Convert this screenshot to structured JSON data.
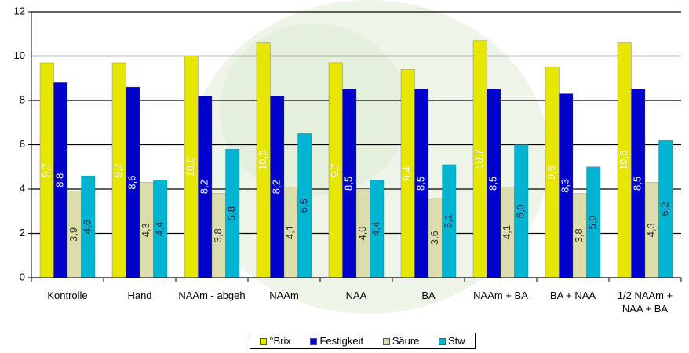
{
  "chart_data": {
    "type": "bar",
    "categories": [
      "Kontrolle",
      "Hand",
      "NAAm - abgeh",
      "NAAm",
      "NAA",
      "BA",
      "NAAm + BA",
      "BA + NAA",
      "1/2 NAAm + NAA + BA"
    ],
    "series": [
      {
        "name": "°Brix",
        "color": "#e6e600",
        "values": [
          9.7,
          9.7,
          10.0,
          10.6,
          9.7,
          9.4,
          10.7,
          9.5,
          10.6
        ],
        "value_labels": [
          "9,7",
          "9,7",
          "10,0",
          "10,6",
          "9,7",
          "9,4",
          "10,7",
          "9,5",
          "10,6"
        ]
      },
      {
        "name": "Festigkeit",
        "color": "#0000cc",
        "values": [
          8.8,
          8.6,
          8.2,
          8.2,
          8.5,
          8.5,
          8.5,
          8.3,
          8.5
        ],
        "value_labels": [
          "8,8",
          "8,6",
          "8,2",
          "8,2",
          "8,5",
          "8,5",
          "8,5",
          "8,3",
          "8,5"
        ]
      },
      {
        "name": "Säure",
        "color": "#dcdcac",
        "values": [
          3.9,
          4.3,
          3.8,
          4.1,
          4.0,
          3.6,
          4.1,
          3.8,
          4.3
        ],
        "value_labels": [
          "3,9",
          "4,3",
          "3,8",
          "4,1",
          "4,0",
          "3,6",
          "4,1",
          "3,8",
          "4,3"
        ]
      },
      {
        "name": "Stw",
        "color": "#00b4d2",
        "values": [
          4.6,
          4.4,
          5.8,
          6.5,
          4.4,
          5.1,
          6.0,
          5.0,
          6.2
        ],
        "value_labels": [
          "4,6",
          "4,4",
          "5,8",
          "6,5",
          "4,4",
          "5,1",
          "6,0",
          "5,0",
          "6,2"
        ]
      }
    ],
    "ylim": [
      0,
      12
    ],
    "yticks": [
      0,
      2,
      4,
      6,
      8,
      10,
      12
    ],
    "grid": true
  }
}
